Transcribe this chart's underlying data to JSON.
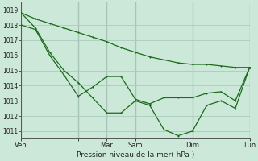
{
  "background_color": "#cce8d8",
  "grid_color": "#aaccbc",
  "line_color": "#1a6b1a",
  "xlabel": "Pression niveau de la mer( hPa )",
  "ylim_low": 1010.5,
  "ylim_high": 1019.5,
  "yticks": [
    1011,
    1012,
    1013,
    1014,
    1015,
    1016,
    1017,
    1018,
    1019
  ],
  "xmax": 32,
  "day_positions": [
    0,
    8,
    12,
    16,
    24,
    32
  ],
  "day_labels": [
    "Ven",
    "",
    "Mar",
    "Sam",
    "Dim",
    "Lun"
  ],
  "series1_x": [
    0,
    2,
    4,
    6,
    8,
    10,
    12,
    14,
    16,
    18,
    20,
    22,
    24,
    26,
    28,
    30,
    32
  ],
  "series1_y": [
    1018.8,
    1018.4,
    1018.1,
    1017.8,
    1017.5,
    1017.2,
    1016.9,
    1016.5,
    1016.2,
    1015.9,
    1015.7,
    1015.5,
    1015.4,
    1015.4,
    1015.3,
    1015.2,
    1015.2
  ],
  "series2_x": [
    0,
    2,
    4,
    6,
    8,
    10,
    12,
    14,
    16,
    18,
    20,
    22,
    24,
    26,
    28,
    30,
    32
  ],
  "series2_y": [
    1018.0,
    1017.7,
    1016.0,
    1014.7,
    1013.3,
    1013.9,
    1014.6,
    1014.6,
    1013.1,
    1012.8,
    1013.2,
    1013.2,
    1013.2,
    1013.5,
    1013.6,
    1013.0,
    1015.2
  ],
  "series3_x": [
    0,
    2,
    4,
    6,
    8,
    10,
    12,
    14,
    16,
    18,
    20,
    22,
    24,
    26,
    28,
    30,
    32
  ],
  "series3_y": [
    1018.8,
    1017.8,
    1016.2,
    1015.0,
    1014.2,
    1013.2,
    1012.2,
    1012.2,
    1013.0,
    1012.7,
    1011.1,
    1010.7,
    1011.0,
    1012.7,
    1013.0,
    1012.5,
    1015.2
  ]
}
